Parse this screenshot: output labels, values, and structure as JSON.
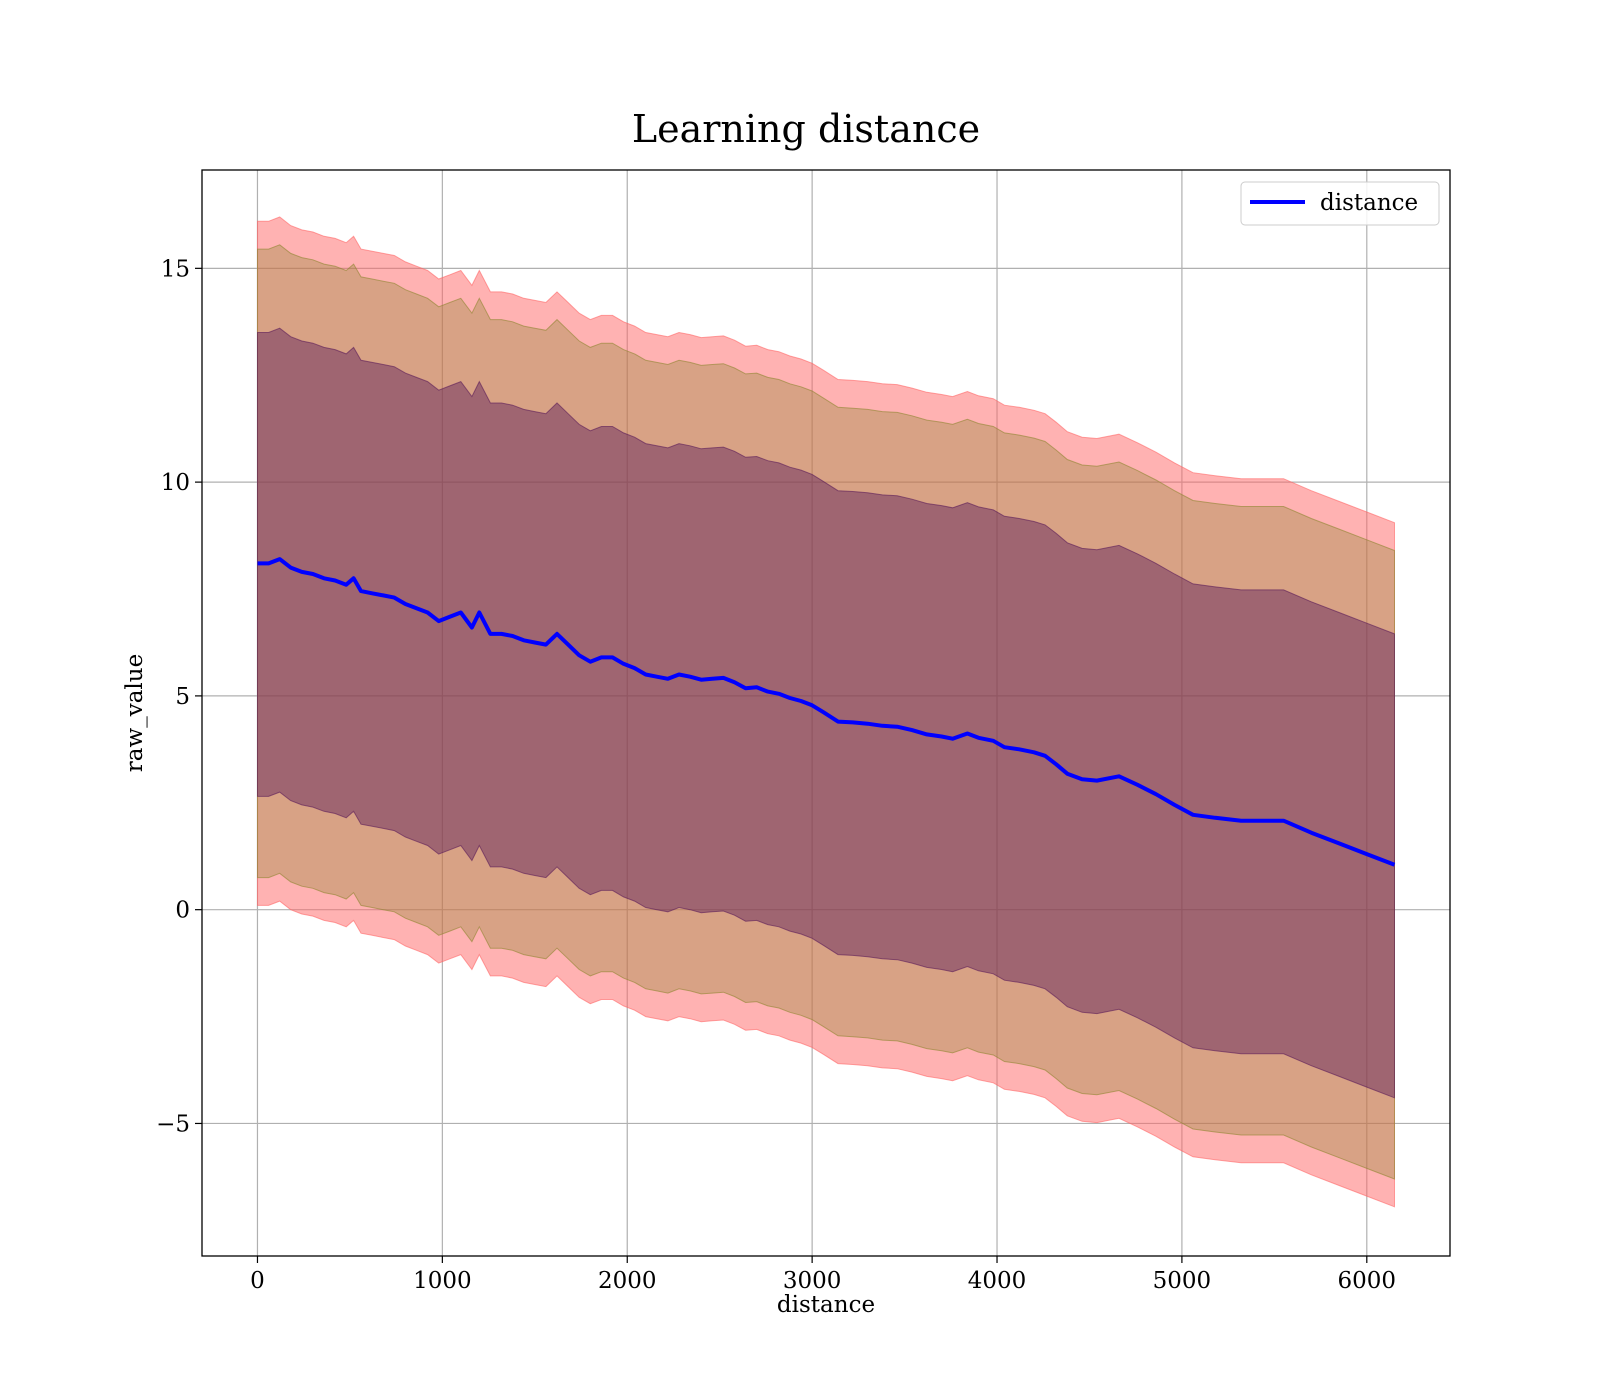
{
  "chart_data": {
    "type": "line",
    "title": "Learning distance",
    "xlabel": "distance",
    "ylabel": "raw_value",
    "xlim": [
      -300,
      6450
    ],
    "ylim": [
      -8.1,
      17.3
    ],
    "xticks": [
      0,
      1000,
      2000,
      3000,
      4000,
      5000,
      6000
    ],
    "xtick_labels": [
      "0",
      "1000",
      "2000",
      "3000",
      "4000",
      "5000",
      "6000"
    ],
    "yticks": [
      -5,
      0,
      5,
      10,
      15
    ],
    "ytick_labels": [
      "−5",
      "0",
      "5",
      "10",
      "15"
    ],
    "grid": true,
    "legend": {
      "position": "top-right",
      "entries": [
        "distance"
      ]
    },
    "series": [
      {
        "name": "distance",
        "color": "#0000ff",
        "x": [
          0,
          60,
          120,
          180,
          240,
          300,
          360,
          420,
          480,
          520,
          560,
          620,
          680,
          740,
          800,
          860,
          920,
          980,
          1040,
          1100,
          1160,
          1200,
          1260,
          1320,
          1380,
          1440,
          1500,
          1560,
          1620,
          1680,
          1740,
          1800,
          1860,
          1920,
          1980,
          2040,
          2100,
          2160,
          2220,
          2280,
          2340,
          2400,
          2460,
          2520,
          2580,
          2640,
          2700,
          2760,
          2820,
          2880,
          2940,
          3000,
          3060,
          3140,
          3220,
          3300,
          3380,
          3460,
          3540,
          3620,
          3700,
          3760,
          3840,
          3900,
          3980,
          4040,
          4120,
          4200,
          4260,
          4320,
          4380,
          4460,
          4540,
          4660,
          4760,
          4860,
          4960,
          5060,
          5180,
          5320,
          5550,
          5700,
          5850,
          6000,
          6150
        ],
        "y": [
          8.1,
          8.1,
          8.2,
          8.0,
          7.9,
          7.85,
          7.75,
          7.7,
          7.6,
          7.75,
          7.45,
          7.4,
          7.35,
          7.3,
          7.15,
          7.05,
          6.95,
          6.75,
          6.85,
          6.95,
          6.6,
          6.95,
          6.45,
          6.45,
          6.4,
          6.3,
          6.25,
          6.2,
          6.45,
          6.2,
          5.95,
          5.8,
          5.9,
          5.9,
          5.75,
          5.65,
          5.5,
          5.45,
          5.4,
          5.5,
          5.45,
          5.38,
          5.4,
          5.42,
          5.32,
          5.18,
          5.2,
          5.1,
          5.05,
          4.95,
          4.88,
          4.78,
          4.62,
          4.4,
          4.38,
          4.35,
          4.3,
          4.28,
          4.2,
          4.1,
          4.05,
          4.0,
          4.12,
          4.02,
          3.95,
          3.8,
          3.75,
          3.68,
          3.6,
          3.4,
          3.18,
          3.05,
          3.02,
          3.12,
          2.92,
          2.7,
          2.45,
          2.22,
          2.15,
          2.08,
          2.08,
          1.8,
          1.55,
          1.3,
          1.05
        ]
      }
    ],
    "bands": [
      {
        "name": "",
        "color": "#ff6666",
        "opacity": 0.5,
        "offset_lower": 8.0,
        "offset_upper": 8.0
      },
      {
        "name": "",
        "color": "#8f8530",
        "opacity": 0.35,
        "offset_lower": 7.35,
        "offset_upper": 7.35
      },
      {
        "name": "",
        "color": "#5a1a58",
        "opacity": 0.45,
        "offset_lower": 5.45,
        "offset_upper": 5.4
      }
    ]
  }
}
